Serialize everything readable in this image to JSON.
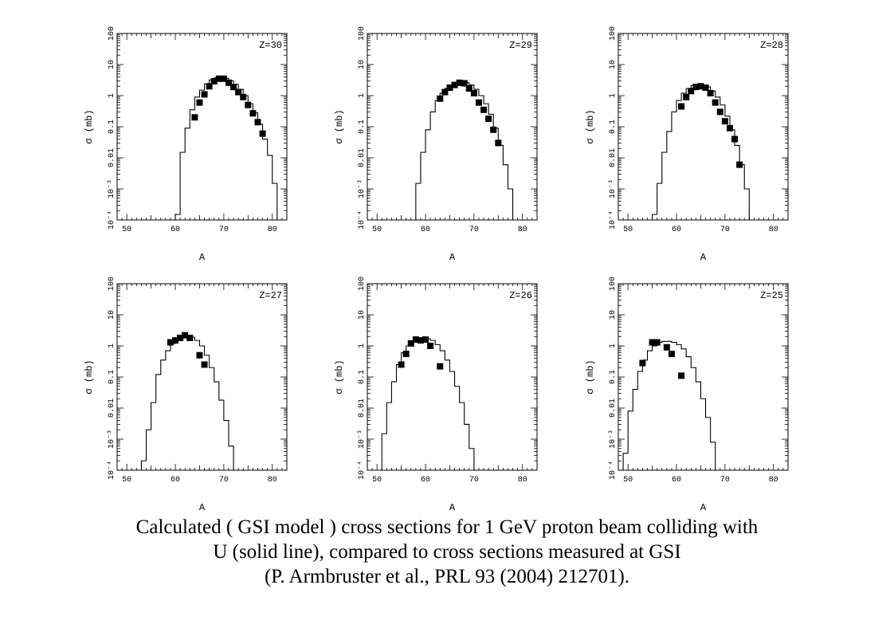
{
  "chart_data": [
    {
      "type": "line",
      "label": "Z=30",
      "xlabel": "A",
      "ylabel": "σ (mb)",
      "xlim": [
        48,
        83
      ],
      "ylim": [
        0.0001,
        100
      ],
      "yscale": "log",
      "xticks": [
        "50",
        "60",
        "70",
        "80"
      ],
      "yticks": [
        "10⁻⁴",
        "10⁻³",
        "0.01",
        "0.1",
        "1",
        "10",
        "100"
      ],
      "series": [
        {
          "kind": "histogram",
          "edges": [
            60,
            61,
            62,
            63,
            64,
            65,
            66,
            67,
            68,
            69,
            70,
            71,
            72,
            73,
            74,
            75,
            76,
            77,
            78,
            79,
            80,
            81
          ],
          "values": [
            0.00015,
            0.015,
            0.09,
            0.35,
            0.9,
            1.5,
            2.4,
            3.2,
            3.7,
            3.9,
            3.6,
            3.0,
            2.3,
            1.6,
            1.0,
            0.55,
            0.28,
            0.12,
            0.04,
            0.012,
            0.0015
          ]
        },
        {
          "kind": "points",
          "x": [
            64,
            65,
            66,
            67,
            68,
            69,
            70,
            71,
            72,
            73,
            74,
            75,
            76,
            77,
            78
          ],
          "y": [
            0.2,
            0.6,
            1.1,
            2.0,
            2.9,
            3.5,
            3.5,
            2.6,
            1.9,
            1.3,
            0.9,
            0.5,
            0.27,
            0.14,
            0.06
          ]
        }
      ]
    },
    {
      "type": "line",
      "label": "Z=29",
      "xlabel": "A",
      "ylabel": "σ (mb)",
      "xlim": [
        48,
        83
      ],
      "ylim": [
        0.0001,
        100
      ],
      "yscale": "log",
      "xticks": [
        "50",
        "60",
        "70",
        "80"
      ],
      "yticks": [
        "10⁻⁴",
        "10⁻³",
        "0.01",
        "0.1",
        "1",
        "10",
        "100"
      ],
      "series": [
        {
          "kind": "histogram",
          "edges": [
            58,
            59,
            60,
            61,
            62,
            63,
            64,
            65,
            66,
            67,
            68,
            69,
            70,
            71,
            72,
            73,
            74,
            75,
            76,
            77,
            78
          ],
          "values": [
            0.0015,
            0.015,
            0.08,
            0.3,
            0.7,
            1.2,
            1.7,
            2.2,
            2.6,
            2.8,
            2.6,
            2.2,
            1.6,
            1.0,
            0.55,
            0.25,
            0.09,
            0.025,
            0.006,
            0.001
          ]
        },
        {
          "kind": "points",
          "x": [
            63,
            64,
            65,
            66,
            67,
            68,
            69,
            70,
            71,
            72,
            73,
            74,
            75
          ],
          "y": [
            0.8,
            1.3,
            1.8,
            2.2,
            2.6,
            2.5,
            1.7,
            1.2,
            0.6,
            0.35,
            0.18,
            0.08,
            0.03
          ]
        }
      ]
    },
    {
      "type": "line",
      "label": "Z=28",
      "xlabel": "A",
      "ylabel": "σ (mb)",
      "xlim": [
        48,
        83
      ],
      "ylim": [
        0.0001,
        100
      ],
      "yscale": "log",
      "xticks": [
        "50",
        "60",
        "70",
        "80"
      ],
      "yticks": [
        "10⁻⁴",
        "10⁻³",
        "0.01",
        "0.1",
        "1",
        "10",
        "100"
      ],
      "series": [
        {
          "kind": "histogram",
          "edges": [
            55,
            56,
            57,
            58,
            59,
            60,
            61,
            62,
            63,
            64,
            65,
            66,
            67,
            68,
            69,
            70,
            71,
            72,
            73,
            74,
            75
          ],
          "values": [
            0.00015,
            0.0015,
            0.015,
            0.07,
            0.3,
            0.7,
            1.2,
            1.7,
            2.1,
            2.3,
            2.2,
            1.9,
            1.4,
            0.9,
            0.5,
            0.22,
            0.08,
            0.025,
            0.006,
            0.001
          ]
        },
        {
          "kind": "points",
          "x": [
            61,
            62,
            63,
            64,
            65,
            66,
            67,
            68,
            69,
            70,
            71,
            72,
            73
          ],
          "y": [
            0.45,
            0.9,
            1.4,
            1.9,
            2.0,
            1.8,
            1.2,
            0.6,
            0.3,
            0.15,
            0.09,
            0.04,
            0.006
          ]
        }
      ]
    },
    {
      "type": "line",
      "label": "Z=27",
      "xlabel": "A",
      "ylabel": "σ (mb)",
      "xlim": [
        48,
        83
      ],
      "ylim": [
        0.0001,
        100
      ],
      "yscale": "log",
      "xticks": [
        "50",
        "60",
        "70",
        "80"
      ],
      "yticks": [
        "10⁻⁴",
        "10⁻³",
        "0.01",
        "0.1",
        "1",
        "10",
        "100"
      ],
      "series": [
        {
          "kind": "histogram",
          "edges": [
            53,
            54,
            55,
            56,
            57,
            58,
            59,
            60,
            61,
            62,
            63,
            64,
            65,
            66,
            67,
            68,
            69,
            70,
            71,
            72
          ],
          "values": [
            0.0002,
            0.002,
            0.015,
            0.12,
            0.35,
            0.7,
            1.2,
            1.6,
            1.9,
            2.0,
            1.9,
            1.5,
            1.0,
            0.5,
            0.2,
            0.07,
            0.018,
            0.004,
            0.0006
          ]
        },
        {
          "kind": "points",
          "x": [
            59,
            60,
            61,
            62,
            63,
            65,
            66
          ],
          "y": [
            1.3,
            1.5,
            1.8,
            2.2,
            1.8,
            0.5,
            0.25
          ]
        }
      ]
    },
    {
      "type": "line",
      "label": "Z=26",
      "xlabel": "A",
      "ylabel": "σ (mb)",
      "xlim": [
        48,
        83
      ],
      "ylim": [
        0.0001,
        100
      ],
      "yscale": "log",
      "xticks": [
        "50",
        "60",
        "70",
        "80"
      ],
      "yticks": [
        "10⁻⁴",
        "10⁻³",
        "0.01",
        "0.1",
        "1",
        "10",
        "100"
      ],
      "series": [
        {
          "kind": "histogram",
          "edges": [
            51,
            52,
            53,
            54,
            55,
            56,
            57,
            58,
            59,
            60,
            61,
            62,
            63,
            64,
            65,
            66,
            67,
            68,
            69,
            70
          ],
          "values": [
            0.0015,
            0.015,
            0.07,
            0.25,
            0.6,
            1.0,
            1.4,
            1.7,
            1.8,
            1.7,
            1.5,
            1.1,
            0.7,
            0.35,
            0.15,
            0.05,
            0.015,
            0.003,
            0.0005
          ]
        },
        {
          "kind": "points",
          "x": [
            55,
            56,
            57,
            58,
            59,
            60,
            61,
            63
          ],
          "y": [
            0.25,
            0.55,
            1.2,
            1.6,
            1.5,
            1.6,
            1.0,
            0.22
          ]
        }
      ]
    },
    {
      "type": "line",
      "label": "Z=25",
      "xlabel": "A",
      "ylabel": "σ (mb)",
      "xlim": [
        48,
        83
      ],
      "ylim": [
        0.0001,
        100
      ],
      "yscale": "log",
      "xticks": [
        "50",
        "60",
        "70",
        "80"
      ],
      "yticks": [
        "10⁻⁴",
        "10⁻³",
        "0.01",
        "0.1",
        "1",
        "10",
        "100"
      ],
      "series": [
        {
          "kind": "histogram",
          "edges": [
            49,
            50,
            51,
            52,
            53,
            54,
            55,
            56,
            57,
            58,
            59,
            60,
            61,
            62,
            63,
            64,
            65,
            66,
            67,
            68
          ],
          "values": [
            0.00035,
            0.008,
            0.04,
            0.15,
            0.35,
            0.7,
            1.0,
            1.3,
            1.4,
            1.4,
            1.3,
            1.1,
            0.8,
            0.45,
            0.2,
            0.07,
            0.02,
            0.005,
            0.0008
          ]
        },
        {
          "kind": "points",
          "x": [
            53,
            55,
            56,
            58,
            59,
            61
          ],
          "y": [
            0.28,
            1.3,
            1.3,
            0.9,
            0.55,
            0.11
          ]
        }
      ]
    }
  ],
  "caption": {
    "line1": "Calculated ( GSI model ) cross sections for 1 GeV proton beam colliding with",
    "line2": "U (solid line), compared to cross sections measured  at GSI",
    "line3": "(P. Armbruster  et al., PRL 93 (2004) 212701)."
  }
}
